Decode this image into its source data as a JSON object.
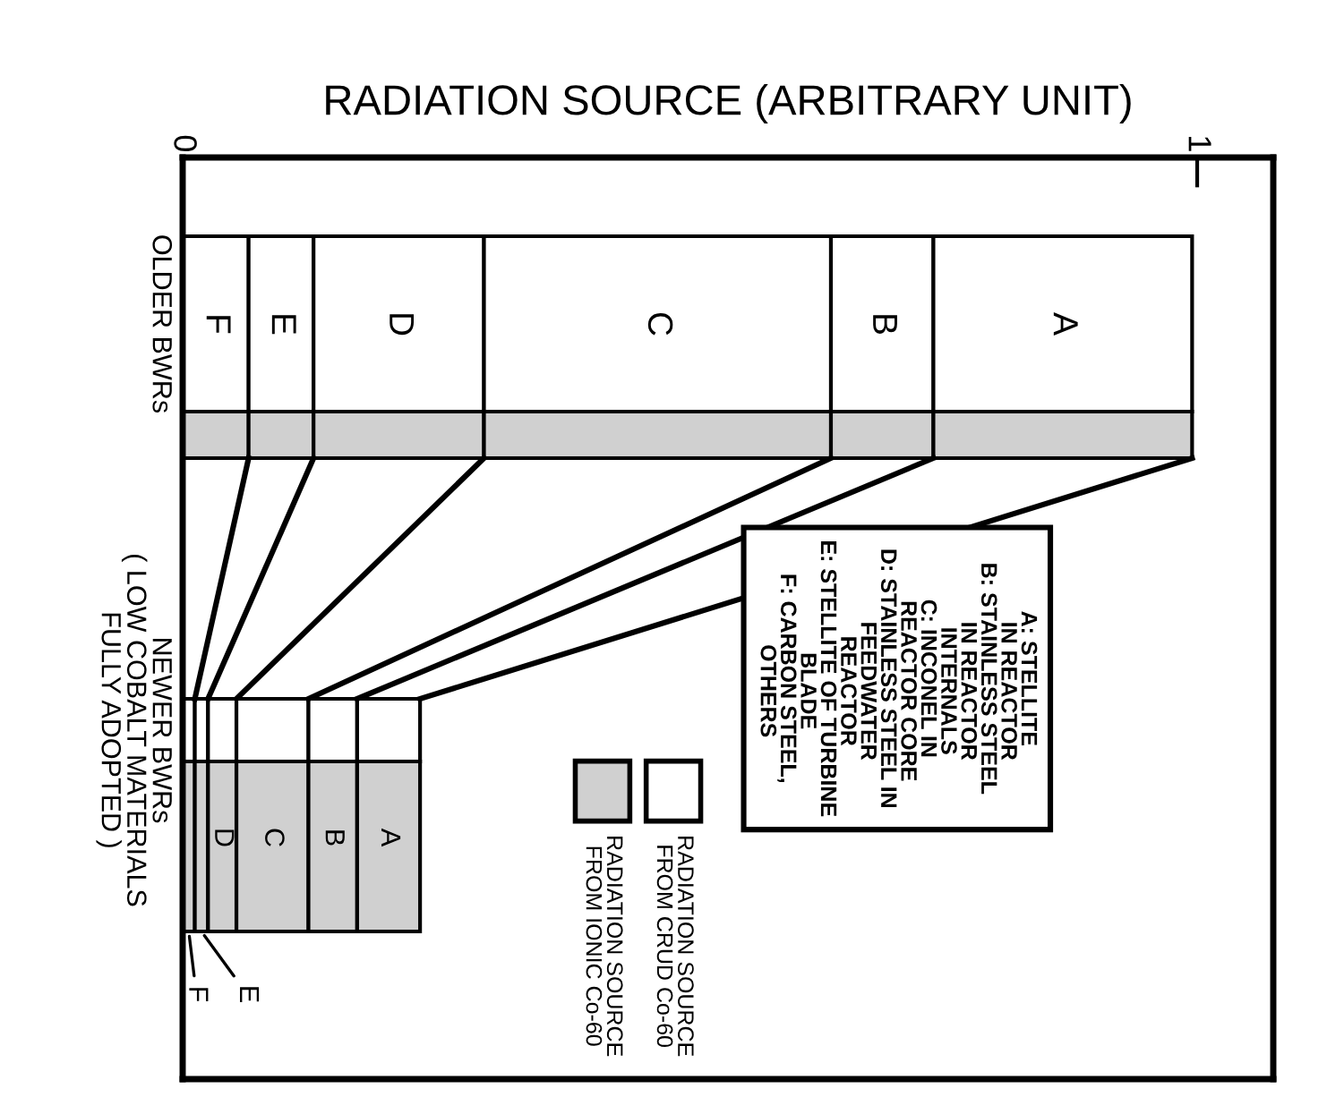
{
  "chart_data": {
    "type": "bar",
    "orientation": "horizontal",
    "stacked": true,
    "xlabel": "RADIATION SOURCE (ARBITRARY UNIT)",
    "categories": [
      "OLDER BWRs",
      null,
      "NEWER BWRs\n( LOW COBALT MATERIALS\nFULLY ADOPTED )",
      null
    ],
    "xlim": [
      0,
      1.075
    ],
    "xticks": [
      0,
      1
    ],
    "grid": false,
    "series": [
      {
        "name": "F",
        "colors": [
          "#ffffff",
          "#d0d0d0",
          "#ffffff",
          "#d0d0d0"
        ],
        "values": [
          0.065,
          0.065,
          0.012,
          0.012
        ]
      },
      {
        "name": "E",
        "colors": [
          "#ffffff",
          "#d0d0d0",
          "#ffffff",
          "#d0d0d0"
        ],
        "values": [
          0.064,
          0.064,
          0.013,
          0.013
        ]
      },
      {
        "name": "D",
        "colors": [
          "#ffffff",
          "#d0d0d0",
          "#ffffff",
          "#d0d0d0"
        ],
        "values": [
          0.168,
          0.168,
          0.028,
          0.028
        ]
      },
      {
        "name": "C",
        "colors": [
          "#ffffff",
          "#d0d0d0",
          "#ffffff",
          "#d0d0d0"
        ],
        "values": [
          0.342,
          0.342,
          0.071,
          0.071
        ]
      },
      {
        "name": "B",
        "colors": [
          "#ffffff",
          "#d0d0d0",
          "#ffffff",
          "#d0d0d0"
        ],
        "values": [
          0.101,
          0.101,
          0.048,
          0.048
        ]
      },
      {
        "name": "A",
        "colors": [
          "#ffffff",
          "#d0d0d0",
          "#ffffff",
          "#d0d0d0"
        ],
        "values": [
          0.255,
          0.255,
          0.062,
          0.062
        ]
      }
    ],
    "annotations": [
      "A: STELLITE\n    IN REACTOR\nB: STAINLESS STEEL\n    IN REACTOR\n    INTERNALS\nC: INCONEL IN\n    REACTOR CORE\nD: STAINLESS STEEL IN\n    FEEDWATER\n    REACTOR\nE: STELLITE OF TURBINE\n    BLADE\nF: CARBON STEEL,\n    OTHERS",
      "RADIATION SOURCE\nFROM CRUD Co-60",
      "RADIATION SOURCE\nFROM IONIC Co-60"
    ]
  }
}
